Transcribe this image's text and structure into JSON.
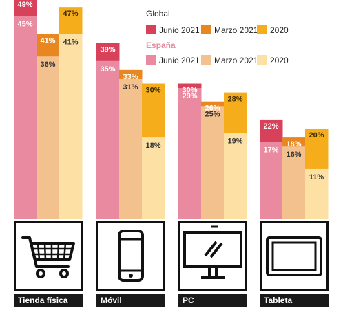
{
  "chart_data": {
    "type": "bar",
    "categories": [
      "Tienda física",
      "Móvil",
      "PC",
      "Tableta"
    ],
    "icons": [
      "shopping-cart-icon",
      "smartphone-icon",
      "desktop-monitor-icon",
      "tablet-icon"
    ],
    "legend": {
      "global_heading": "Global",
      "spain_heading": "España",
      "entries": [
        {
          "group": "global",
          "label": "Junio 2021",
          "color": "#d8415a"
        },
        {
          "group": "global",
          "label": "Marzo 2021",
          "color": "#e8861f"
        },
        {
          "group": "global",
          "label": "2020",
          "color": "#f6ad1c"
        },
        {
          "group": "spain",
          "label": "Junio 2021",
          "color": "#e98aa0"
        },
        {
          "group": "spain",
          "label": "Marzo 2021",
          "color": "#f3c18e"
        },
        {
          "group": "spain",
          "label": "2020",
          "color": "#fde0a3"
        }
      ]
    },
    "series": [
      {
        "name": "Junio 2021",
        "group": "global",
        "values": [
          49,
          39,
          30,
          22
        ],
        "labels": [
          "49%",
          "39%",
          "30%",
          "22%"
        ]
      },
      {
        "name": "Marzo 2021",
        "group": "global",
        "values": [
          41,
          33,
          26,
          18
        ],
        "labels": [
          "41%",
          "33%",
          "26%",
          "18%"
        ]
      },
      {
        "name": "2020",
        "group": "global",
        "values": [
          47,
          30,
          28,
          20
        ],
        "labels": [
          "47%",
          "30%",
          "28%",
          "20%"
        ]
      },
      {
        "name": "Junio 2021",
        "group": "spain",
        "values": [
          45,
          35,
          29,
          17
        ],
        "labels": [
          "45%",
          "35%",
          "29%",
          "17%"
        ]
      },
      {
        "name": "Marzo 2021",
        "group": "spain",
        "values": [
          36,
          31,
          25,
          16
        ],
        "labels": [
          "36%",
          "31%",
          "25%",
          "16%"
        ]
      },
      {
        "name": "2020",
        "group": "spain",
        "values": [
          41,
          18,
          19,
          11
        ],
        "labels": [
          "41%",
          "18%",
          "19%",
          "11%"
        ]
      }
    ],
    "colors": {
      "global": [
        "#d8415a",
        "#e8861f",
        "#f6ad1c"
      ],
      "spain": [
        "#e98aa0",
        "#f3c18e",
        "#fde0a3"
      ],
      "global_heading": "#222222",
      "spain_heading": "#e98aa0"
    },
    "ylim": [
      0,
      52
    ],
    "grid": false
  }
}
